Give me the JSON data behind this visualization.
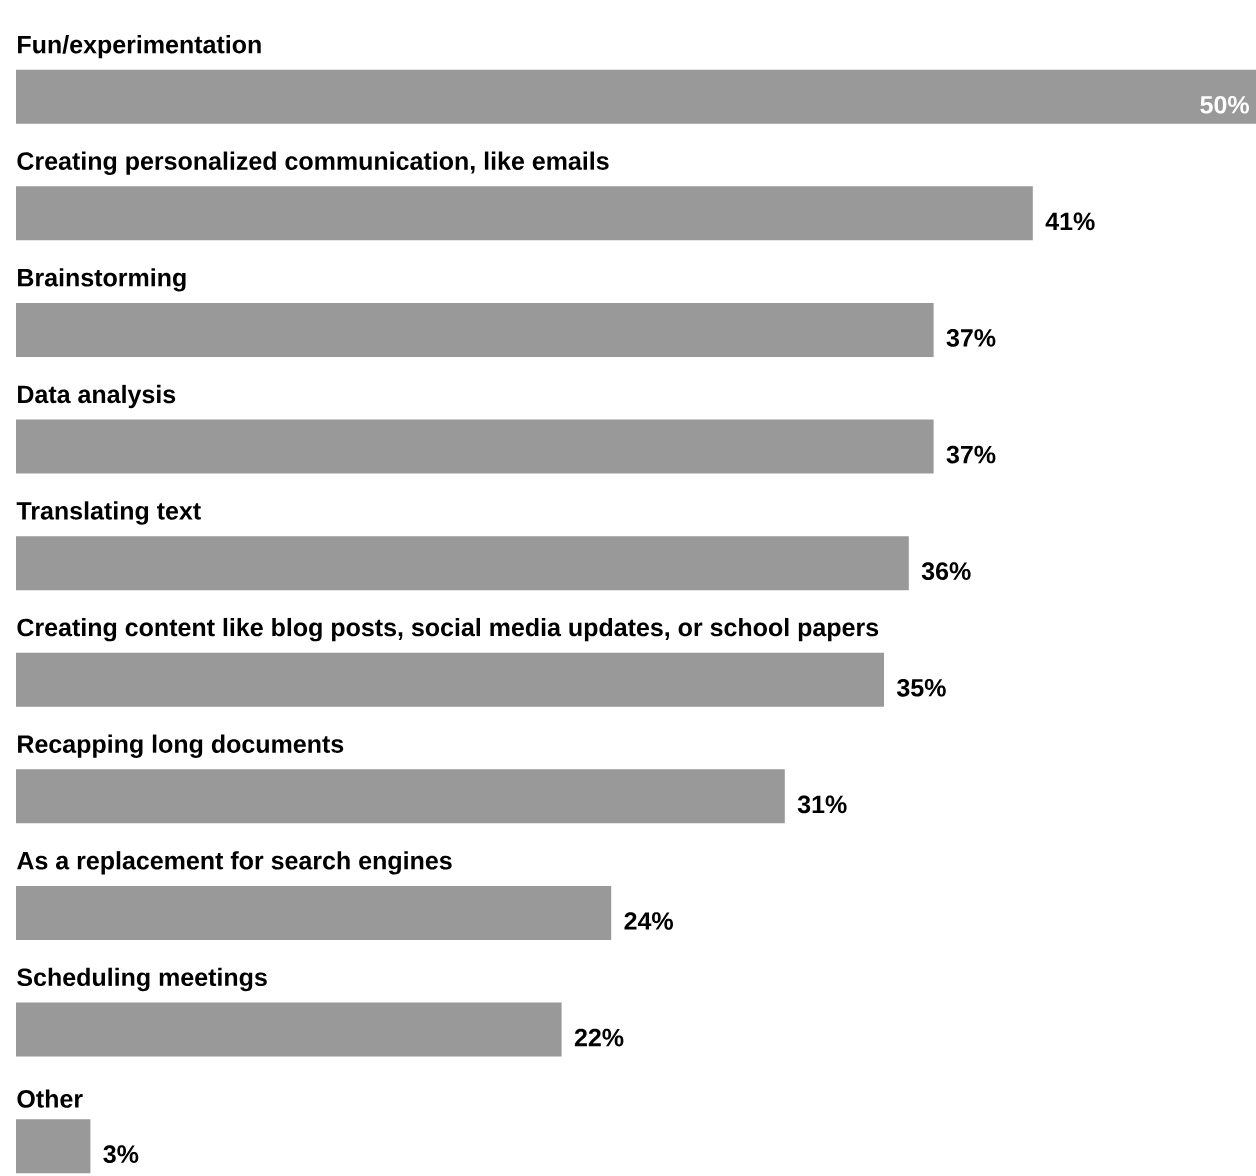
{
  "chart_data": {
    "type": "bar",
    "orientation": "horizontal",
    "categories": [
      "Fun/experimentation",
      "Creating personalized communication, like emails",
      "Brainstorming",
      "Data analysis",
      "Translating text",
      "Creating content like blog posts, social media updates, or school papers",
      "Recapping long documents",
      "As a replacement for search engines",
      "Scheduling meetings",
      "Other"
    ],
    "values": [
      50,
      41,
      37,
      37,
      36,
      35,
      31,
      24,
      22,
      3
    ],
    "value_labels": [
      "50%",
      "41%",
      "37%",
      "37%",
      "36%",
      "35%",
      "31%",
      "24%",
      "22%",
      "3%"
    ],
    "color": "#999999",
    "xlim": [
      0,
      50
    ]
  }
}
